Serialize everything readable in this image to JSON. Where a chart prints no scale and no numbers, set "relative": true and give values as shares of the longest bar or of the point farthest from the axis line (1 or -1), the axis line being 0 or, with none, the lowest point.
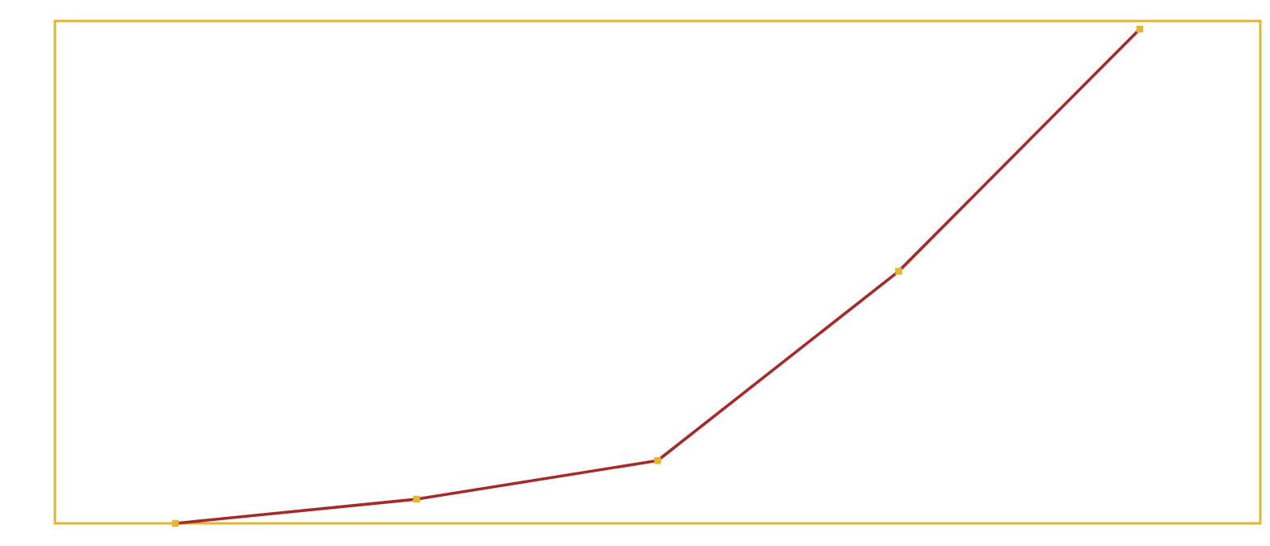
{
  "chart_data": {
    "type": "line",
    "relative": true,
    "marker": "square",
    "line_style": "solid",
    "legend": false,
    "tick_labels": false,
    "categories": [
      null,
      null,
      null,
      null,
      null
    ],
    "series": [
      {
        "color": "#a52a2a",
        "values": [
          0,
          0.049,
          0.127,
          0.51,
          1
        ]
      }
    ]
  }
}
